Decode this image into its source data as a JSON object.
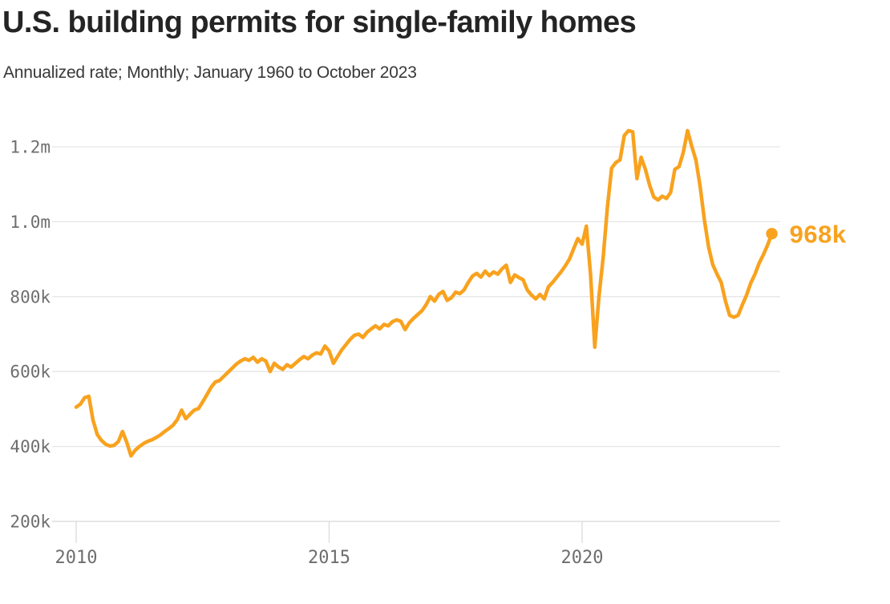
{
  "header": {
    "title": "U.S. building permits for single-family homes",
    "subtitle": "Annualized rate; Monthly; January 1960 to October 2023"
  },
  "colors": {
    "accent": "#f8a21e",
    "grid": "#e5e5e5",
    "axis_line": "#d8d8d8",
    "tick_mark": "#dcdcdc",
    "axis_text": "#6e6e6e",
    "title_text": "#242424",
    "subtitle_text": "#383838",
    "background": "#ffffff"
  },
  "chart_data": {
    "type": "line",
    "title": "U.S. building permits for single-family homes",
    "subtitle": "Annualized rate; Monthly; January 1960 to October 2023",
    "legend": "none",
    "grid": "horizontal",
    "x_start": {
      "year": 2010,
      "month": 1
    },
    "x_end": {
      "year": 2023,
      "month": 10
    },
    "x_tick_labels": [
      "2010",
      "2015",
      "2020"
    ],
    "y_tick_labels": [
      "200k",
      "400k",
      "600k",
      "800k",
      "1.0m",
      "1.2m"
    ],
    "y_tick_values": [
      200,
      400,
      600,
      800,
      1000,
      1200
    ],
    "ylim": [
      200,
      1300
    ],
    "end_label": "968k",
    "end_value": 968,
    "values_monthly_thousands": [
      505,
      513,
      530,
      534,
      470,
      432,
      416,
      406,
      401,
      403,
      413,
      440,
      411,
      375,
      390,
      400,
      408,
      414,
      418,
      424,
      431,
      440,
      448,
      457,
      472,
      497,
      474,
      486,
      497,
      501,
      519,
      538,
      558,
      572,
      576,
      587,
      598,
      609,
      620,
      628,
      634,
      630,
      638,
      625,
      634,
      628,
      600,
      622,
      612,
      606,
      618,
      612,
      622,
      632,
      640,
      634,
      644,
      650,
      647,
      668,
      655,
      622,
      640,
      658,
      672,
      686,
      697,
      700,
      691,
      705,
      714,
      722,
      714,
      726,
      722,
      733,
      738,
      734,
      712,
      730,
      742,
      752,
      762,
      778,
      800,
      788,
      806,
      814,
      790,
      797,
      812,
      808,
      818,
      838,
      855,
      862,
      852,
      868,
      856,
      866,
      860,
      874,
      884,
      838,
      858,
      851,
      845,
      818,
      804,
      794,
      806,
      794,
      826,
      838,
      852,
      866,
      882,
      900,
      928,
      955,
      940,
      988,
      860,
      665,
      800,
      905,
      1040,
      1143,
      1158,
      1165,
      1230,
      1243,
      1240,
      1115,
      1172,
      1140,
      1098,
      1066,
      1058,
      1068,
      1062,
      1078,
      1140,
      1147,
      1185,
      1243,
      1202,
      1164,
      1094,
      1005,
      932,
      885,
      860,
      838,
      788,
      750,
      745,
      750,
      778,
      804,
      836,
      860,
      890,
      912,
      938,
      968
    ]
  }
}
